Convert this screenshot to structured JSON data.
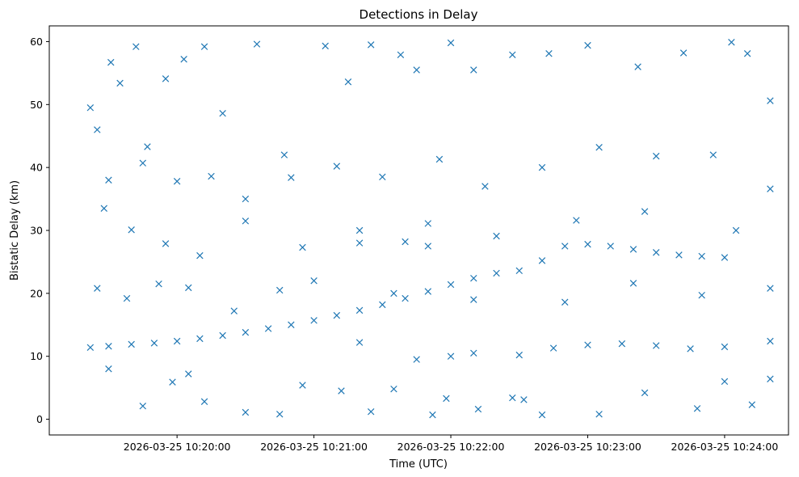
{
  "chart_data": {
    "type": "scatter",
    "title": "Detections in Delay",
    "xlabel": "Time (UTC)",
    "ylabel": "Bistatic Delay (km)",
    "x_is_time": true,
    "xlim": [
      "2026-03-25 10:19:04",
      "2026-03-25 10:24:28"
    ],
    "ylim": [
      -2.5,
      62.5
    ],
    "x_ticks": [
      "2026-03-25 10:20:00",
      "2026-03-25 10:21:00",
      "2026-03-25 10:22:00",
      "2026-03-25 10:23:00",
      "2026-03-25 10:24:00"
    ],
    "y_ticks": [
      0,
      10,
      20,
      30,
      40,
      50,
      60
    ],
    "grid": false,
    "marker": "x",
    "color": "#1f77b4",
    "track_points": [
      {
        "x": "2026-03-25 10:19:22",
        "y": 11.4
      },
      {
        "x": "2026-03-25 10:19:30",
        "y": 11.6
      },
      {
        "x": "2026-03-25 10:19:40",
        "y": 11.9
      },
      {
        "x": "2026-03-25 10:19:50",
        "y": 12.1
      },
      {
        "x": "2026-03-25 10:20:00",
        "y": 12.4
      },
      {
        "x": "2026-03-25 10:20:10",
        "y": 12.8
      },
      {
        "x": "2026-03-25 10:20:20",
        "y": 13.3
      },
      {
        "x": "2026-03-25 10:20:30",
        "y": 13.8
      },
      {
        "x": "2026-03-25 10:20:40",
        "y": 14.4
      },
      {
        "x": "2026-03-25 10:20:50",
        "y": 15.0
      },
      {
        "x": "2026-03-25 10:21:00",
        "y": 15.7
      },
      {
        "x": "2026-03-25 10:21:10",
        "y": 16.5
      },
      {
        "x": "2026-03-25 10:21:20",
        "y": 17.3
      },
      {
        "x": "2026-03-25 10:21:30",
        "y": 18.2
      },
      {
        "x": "2026-03-25 10:21:40",
        "y": 19.2
      },
      {
        "x": "2026-03-25 10:21:50",
        "y": 20.3
      },
      {
        "x": "2026-03-25 10:22:00",
        "y": 21.4
      },
      {
        "x": "2026-03-25 10:22:10",
        "y": 22.4
      },
      {
        "x": "2026-03-25 10:22:20",
        "y": 23.2
      },
      {
        "x": "2026-03-25 10:22:30",
        "y": 23.6
      },
      {
        "x": "2026-03-25 10:22:40",
        "y": 25.2
      },
      {
        "x": "2026-03-25 10:22:50",
        "y": 27.5
      },
      {
        "x": "2026-03-25 10:23:00",
        "y": 27.8
      },
      {
        "x": "2026-03-25 10:23:10",
        "y": 27.5
      },
      {
        "x": "2026-03-25 10:23:20",
        "y": 27.0
      },
      {
        "x": "2026-03-25 10:23:30",
        "y": 26.5
      },
      {
        "x": "2026-03-25 10:23:40",
        "y": 26.1
      },
      {
        "x": "2026-03-25 10:23:50",
        "y": 25.9
      },
      {
        "x": "2026-03-25 10:24:00",
        "y": 25.7
      },
      {
        "x": "2026-03-25 10:22:45",
        "y": 11.3
      },
      {
        "x": "2026-03-25 10:23:00",
        "y": 11.8
      },
      {
        "x": "2026-03-25 10:23:15",
        "y": 12.0
      },
      {
        "x": "2026-03-25 10:23:30",
        "y": 11.7
      },
      {
        "x": "2026-03-25 10:23:45",
        "y": 11.2
      },
      {
        "x": "2026-03-25 10:24:00",
        "y": 11.5
      },
      {
        "x": "2026-03-25 10:24:20",
        "y": 12.4
      },
      {
        "x": "2026-03-25 10:21:20",
        "y": 12.2
      },
      {
        "x": "2026-03-25 10:21:45",
        "y": 9.5
      },
      {
        "x": "2026-03-25 10:22:00",
        "y": 10.0
      },
      {
        "x": "2026-03-25 10:22:10",
        "y": 10.5
      },
      {
        "x": "2026-03-25 10:22:30",
        "y": 10.2
      },
      {
        "x": "2026-03-25 10:21:20",
        "y": 28.0
      },
      {
        "x": "2026-03-25 10:21:40",
        "y": 28.2
      },
      {
        "x": "2026-03-25 10:21:50",
        "y": 27.5
      }
    ],
    "clutter_points": [
      {
        "x": "2026-03-25 10:19:22",
        "y": 49.5
      },
      {
        "x": "2026-03-25 10:19:25",
        "y": 46.0
      },
      {
        "x": "2026-03-25 10:19:31",
        "y": 56.7
      },
      {
        "x": "2026-03-25 10:19:35",
        "y": 53.4
      },
      {
        "x": "2026-03-25 10:19:42",
        "y": 59.2
      },
      {
        "x": "2026-03-25 10:19:47",
        "y": 43.3
      },
      {
        "x": "2026-03-25 10:19:55",
        "y": 54.1
      },
      {
        "x": "2026-03-25 10:20:03",
        "y": 57.2
      },
      {
        "x": "2026-03-25 10:20:12",
        "y": 59.2
      },
      {
        "x": "2026-03-25 10:20:20",
        "y": 48.6
      },
      {
        "x": "2026-03-25 10:20:35",
        "y": 59.6
      },
      {
        "x": "2026-03-25 10:20:47",
        "y": 42.0
      },
      {
        "x": "2026-03-25 10:21:05",
        "y": 59.3
      },
      {
        "x": "2026-03-25 10:21:15",
        "y": 53.6
      },
      {
        "x": "2026-03-25 10:21:25",
        "y": 59.5
      },
      {
        "x": "2026-03-25 10:21:38",
        "y": 57.9
      },
      {
        "x": "2026-03-25 10:21:45",
        "y": 55.5
      },
      {
        "x": "2026-03-25 10:22:00",
        "y": 59.8
      },
      {
        "x": "2026-03-25 10:22:10",
        "y": 55.5
      },
      {
        "x": "2026-03-25 10:22:27",
        "y": 57.9
      },
      {
        "x": "2026-03-25 10:22:43",
        "y": 58.1
      },
      {
        "x": "2026-03-25 10:23:00",
        "y": 59.4
      },
      {
        "x": "2026-03-25 10:23:22",
        "y": 56.0
      },
      {
        "x": "2026-03-25 10:23:42",
        "y": 58.2
      },
      {
        "x": "2026-03-25 10:24:03",
        "y": 59.9
      },
      {
        "x": "2026-03-25 10:24:10",
        "y": 58.1
      },
      {
        "x": "2026-03-25 10:24:20",
        "y": 50.6
      },
      {
        "x": "2026-03-25 10:19:30",
        "y": 38.0
      },
      {
        "x": "2026-03-25 10:19:45",
        "y": 40.7
      },
      {
        "x": "2026-03-25 10:20:00",
        "y": 37.8
      },
      {
        "x": "2026-03-25 10:20:15",
        "y": 38.6
      },
      {
        "x": "2026-03-25 10:20:30",
        "y": 35.0
      },
      {
        "x": "2026-03-25 10:20:50",
        "y": 38.4
      },
      {
        "x": "2026-03-25 10:21:10",
        "y": 40.2
      },
      {
        "x": "2026-03-25 10:21:30",
        "y": 38.5
      },
      {
        "x": "2026-03-25 10:21:55",
        "y": 41.3
      },
      {
        "x": "2026-03-25 10:22:15",
        "y": 37.0
      },
      {
        "x": "2026-03-25 10:22:40",
        "y": 40.0
      },
      {
        "x": "2026-03-25 10:23:05",
        "y": 43.2
      },
      {
        "x": "2026-03-25 10:23:30",
        "y": 41.8
      },
      {
        "x": "2026-03-25 10:23:55",
        "y": 42.0
      },
      {
        "x": "2026-03-25 10:24:20",
        "y": 36.6
      },
      {
        "x": "2026-03-25 10:19:28",
        "y": 33.5
      },
      {
        "x": "2026-03-25 10:19:40",
        "y": 30.1
      },
      {
        "x": "2026-03-25 10:19:55",
        "y": 27.9
      },
      {
        "x": "2026-03-25 10:20:10",
        "y": 26.0
      },
      {
        "x": "2026-03-25 10:20:30",
        "y": 31.5
      },
      {
        "x": "2026-03-25 10:20:55",
        "y": 27.3
      },
      {
        "x": "2026-03-25 10:21:20",
        "y": 30.0
      },
      {
        "x": "2026-03-25 10:21:50",
        "y": 31.1
      },
      {
        "x": "2026-03-25 10:22:20",
        "y": 29.1
      },
      {
        "x": "2026-03-25 10:22:55",
        "y": 31.6
      },
      {
        "x": "2026-03-25 10:23:25",
        "y": 33.0
      },
      {
        "x": "2026-03-25 10:24:05",
        "y": 30.0
      },
      {
        "x": "2026-03-25 10:19:25",
        "y": 20.8
      },
      {
        "x": "2026-03-25 10:19:38",
        "y": 19.2
      },
      {
        "x": "2026-03-25 10:19:52",
        "y": 21.5
      },
      {
        "x": "2026-03-25 10:20:05",
        "y": 20.9
      },
      {
        "x": "2026-03-25 10:20:25",
        "y": 17.2
      },
      {
        "x": "2026-03-25 10:20:45",
        "y": 20.5
      },
      {
        "x": "2026-03-25 10:21:00",
        "y": 22.0
      },
      {
        "x": "2026-03-25 10:21:35",
        "y": 20.0
      },
      {
        "x": "2026-03-25 10:22:10",
        "y": 19.0
      },
      {
        "x": "2026-03-25 10:22:50",
        "y": 18.6
      },
      {
        "x": "2026-03-25 10:23:20",
        "y": 21.6
      },
      {
        "x": "2026-03-25 10:23:50",
        "y": 19.7
      },
      {
        "x": "2026-03-25 10:24:20",
        "y": 20.8
      },
      {
        "x": "2026-03-25 10:19:30",
        "y": 8.0
      },
      {
        "x": "2026-03-25 10:19:45",
        "y": 2.1
      },
      {
        "x": "2026-03-25 10:19:58",
        "y": 5.9
      },
      {
        "x": "2026-03-25 10:20:05",
        "y": 7.2
      },
      {
        "x": "2026-03-25 10:20:12",
        "y": 2.8
      },
      {
        "x": "2026-03-25 10:20:30",
        "y": 1.1
      },
      {
        "x": "2026-03-25 10:20:45",
        "y": 0.8
      },
      {
        "x": "2026-03-25 10:20:55",
        "y": 5.4
      },
      {
        "x": "2026-03-25 10:21:12",
        "y": 4.5
      },
      {
        "x": "2026-03-25 10:21:25",
        "y": 1.2
      },
      {
        "x": "2026-03-25 10:21:35",
        "y": 4.8
      },
      {
        "x": "2026-03-25 10:21:52",
        "y": 0.7
      },
      {
        "x": "2026-03-25 10:21:58",
        "y": 3.3
      },
      {
        "x": "2026-03-25 10:22:12",
        "y": 1.6
      },
      {
        "x": "2026-03-25 10:22:27",
        "y": 3.4
      },
      {
        "x": "2026-03-25 10:22:32",
        "y": 3.1
      },
      {
        "x": "2026-03-25 10:22:40",
        "y": 0.7
      },
      {
        "x": "2026-03-25 10:23:05",
        "y": 0.8
      },
      {
        "x": "2026-03-25 10:23:25",
        "y": 4.2
      },
      {
        "x": "2026-03-25 10:23:48",
        "y": 1.7
      },
      {
        "x": "2026-03-25 10:24:00",
        "y": 6.0
      },
      {
        "x": "2026-03-25 10:24:12",
        "y": 2.3
      },
      {
        "x": "2026-03-25 10:24:20",
        "y": 6.4
      }
    ]
  }
}
